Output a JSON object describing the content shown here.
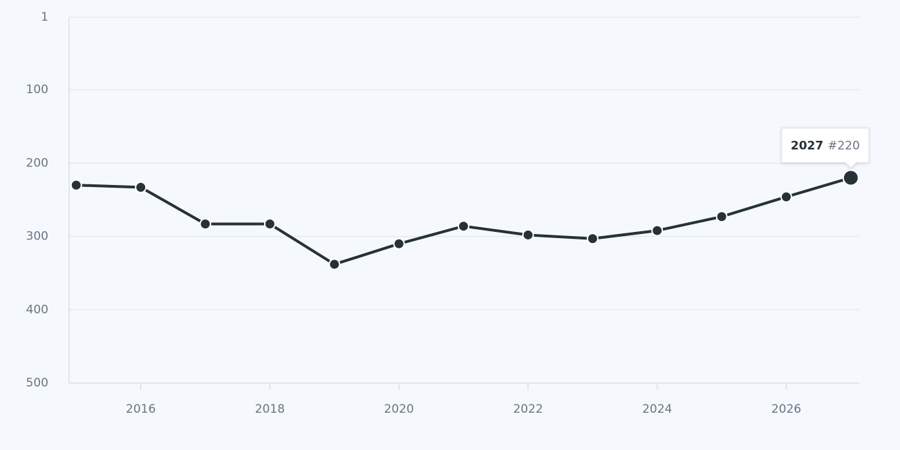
{
  "chart_data": {
    "type": "line",
    "x": [
      2015,
      2016,
      2017,
      2018,
      2019,
      2020,
      2021,
      2022,
      2023,
      2024,
      2025,
      2026,
      2027
    ],
    "series": [
      {
        "color": "#263238",
        "values": [
          230,
          233,
          283,
          283,
          338,
          310,
          286,
          298,
          303,
          292,
          273,
          246,
          220
        ]
      }
    ],
    "xlim": [
      2014.89,
      2027.13
    ],
    "xticks": [
      2016,
      2018,
      2020,
      2022,
      2024,
      2026
    ],
    "ylim": [
      1,
      500
    ],
    "yticks": [
      1,
      100,
      200,
      300,
      400,
      500
    ],
    "y_inverted": true,
    "grid": true,
    "tooltip": {
      "title": "2027",
      "text": "#220"
    }
  }
}
